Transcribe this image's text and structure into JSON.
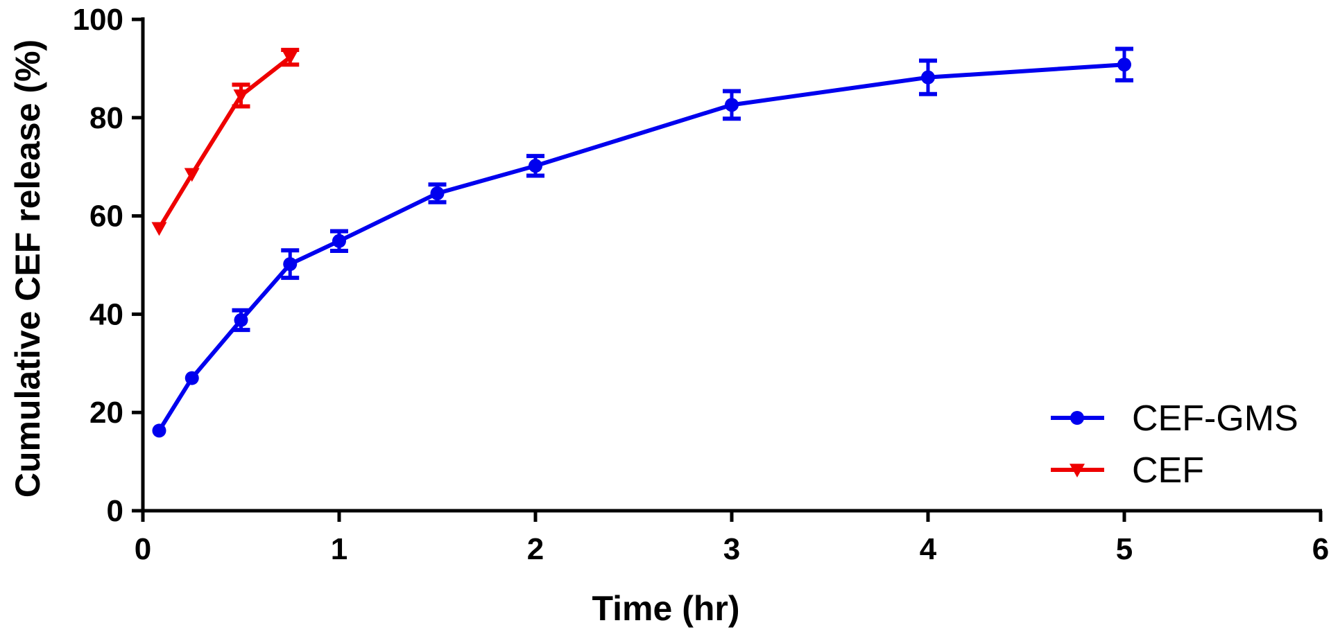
{
  "chart_data": {
    "type": "line",
    "xlabel": "Time (hr)",
    "ylabel": "Cumulative CEF release (%)",
    "xlim": [
      0,
      6
    ],
    "ylim": [
      0,
      100
    ],
    "xticks": [
      "0",
      "1",
      "2",
      "3",
      "4",
      "5",
      "6"
    ],
    "yticks": [
      "0",
      "20",
      "40",
      "60",
      "80",
      "100"
    ],
    "grid": false,
    "legend_position": "bottom-right",
    "series": [
      {
        "name": "CEF-GMS",
        "color": "#0000ee",
        "marker": "circle",
        "x": [
          0.083,
          0.25,
          0.5,
          0.75,
          1,
          1.5,
          2,
          3,
          4,
          5
        ],
        "y": [
          16.3,
          27.0,
          38.8,
          50.2,
          54.9,
          64.6,
          70.2,
          82.6,
          88.2,
          90.8
        ],
        "err": [
          0,
          0,
          2.0,
          2.8,
          2.0,
          1.8,
          2.0,
          2.8,
          3.4,
          3.2
        ]
      },
      {
        "name": "CEF",
        "color": "#ee0000",
        "marker": "triangle-down",
        "x": [
          0.083,
          0.25,
          0.5,
          0.75
        ],
        "y": [
          57.5,
          68.5,
          84.5,
          92.3
        ],
        "err": [
          0,
          0,
          2.2,
          1.5
        ]
      }
    ]
  }
}
